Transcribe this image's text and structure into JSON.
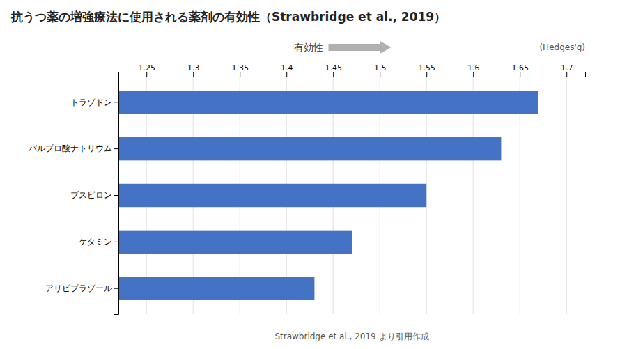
{
  "chart_data": {
    "type": "bar",
    "orientation": "horizontal",
    "title": "抗うつ薬の増強療法に使用される薬剤の有効性（Strawbridge et al., 2019）",
    "categories": [
      "アリピプラゾール",
      "ケタミン",
      "ブスピロン",
      "バルプロ酸ナトリウム",
      "トラゾドン"
    ],
    "values": [
      1.43,
      1.47,
      1.55,
      1.63,
      1.67
    ],
    "color": "#4472C4",
    "xlim": [
      1.22,
      1.72
    ],
    "xticks": [
      1.25,
      1.3,
      1.35,
      1.4,
      1.45,
      1.5,
      1.55,
      1.6,
      1.65,
      1.7
    ],
    "grid": true,
    "annotations": [
      "有効性",
      "(Hedges'g)",
      "Strawbridge et al., 2019 より引用作成"
    ]
  }
}
